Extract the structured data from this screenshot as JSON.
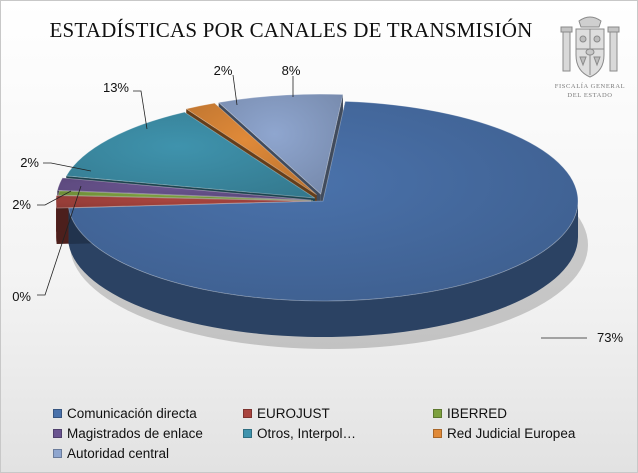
{
  "chart_data": {
    "type": "pie",
    "title": "ESTADÍSTICAS POR CANALES DE TRANSMISIÓN",
    "three_d": true,
    "legend_position": "bottom",
    "slices": [
      {
        "name": "Comunicación directa",
        "value": 73,
        "label": "73%",
        "color": "#4a72ab"
      },
      {
        "name": "EUROJUST",
        "value": 2,
        "label": "2%",
        "color": "#a9453f"
      },
      {
        "name": "IBERRED",
        "value": 0,
        "label": "0%",
        "color": "#7da13f"
      },
      {
        "name": "Magistrados de enlace",
        "value": 2,
        "label": "2%",
        "color": "#6a5490"
      },
      {
        "name": "Otros, Interpol…",
        "value": 13,
        "label": "13%",
        "color": "#3f93ad"
      },
      {
        "name": "Red Judicial Europea",
        "value": 2,
        "label": "2%",
        "color": "#e08a39"
      },
      {
        "name": "Autoridad central",
        "value": 8,
        "label": "8%",
        "color": "#8fa6cf"
      }
    ]
  },
  "logo": {
    "line1": "FISCALÍA GENERAL",
    "line2": "DEL ESTADO"
  }
}
